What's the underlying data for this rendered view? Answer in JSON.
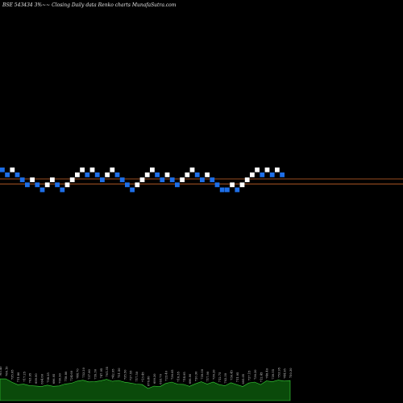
{
  "chart_data": {
    "type": "renko",
    "title": "BSE 543434  3%~~  Closing Daily data  Renko  charts MunafaSutra.com",
    "colors": {
      "up": "#ffffff",
      "down": "#1e6fe8",
      "line": "#c8642a",
      "volume": "#0a4a0a",
      "volume_edge": "#39d639"
    },
    "levels": [
      0,
      1
    ],
    "bricks": [
      {
        "dir": "down",
        "level": 1
      },
      {
        "dir": "down",
        "level": 0
      },
      {
        "dir": "up",
        "level": 1
      },
      {
        "dir": "down",
        "level": 0
      },
      {
        "dir": "down",
        "level": -1
      },
      {
        "dir": "down",
        "level": -2
      },
      {
        "dir": "up",
        "level": -1
      },
      {
        "dir": "down",
        "level": -2
      },
      {
        "dir": "down",
        "level": -3
      },
      {
        "dir": "up",
        "level": -2
      },
      {
        "dir": "up",
        "level": -1
      },
      {
        "dir": "down",
        "level": -2
      },
      {
        "dir": "down",
        "level": -3
      },
      {
        "dir": "up",
        "level": -2
      },
      {
        "dir": "up",
        "level": -1
      },
      {
        "dir": "up",
        "level": 0
      },
      {
        "dir": "up",
        "level": 1
      },
      {
        "dir": "down",
        "level": 0
      },
      {
        "dir": "up",
        "level": 1
      },
      {
        "dir": "down",
        "level": 0
      },
      {
        "dir": "down",
        "level": -1
      },
      {
        "dir": "up",
        "level": 0
      },
      {
        "dir": "up",
        "level": 1
      },
      {
        "dir": "down",
        "level": 0
      },
      {
        "dir": "down",
        "level": -1
      },
      {
        "dir": "down",
        "level": -2
      },
      {
        "dir": "down",
        "level": -3
      },
      {
        "dir": "up",
        "level": -2
      },
      {
        "dir": "up",
        "level": -1
      },
      {
        "dir": "up",
        "level": 0
      },
      {
        "dir": "up",
        "level": 1
      },
      {
        "dir": "down",
        "level": 0
      },
      {
        "dir": "down",
        "level": -1
      },
      {
        "dir": "up",
        "level": 0
      },
      {
        "dir": "down",
        "level": -1
      },
      {
        "dir": "down",
        "level": -2
      },
      {
        "dir": "up",
        "level": -1
      },
      {
        "dir": "up",
        "level": 0
      },
      {
        "dir": "up",
        "level": 1
      },
      {
        "dir": "down",
        "level": 0
      },
      {
        "dir": "down",
        "level": -1
      },
      {
        "dir": "up",
        "level": 0
      },
      {
        "dir": "down",
        "level": -1
      },
      {
        "dir": "down",
        "level": -2
      },
      {
        "dir": "down",
        "level": -3
      },
      {
        "dir": "down",
        "level": -3
      },
      {
        "dir": "up",
        "level": -2
      },
      {
        "dir": "down",
        "level": -3
      },
      {
        "dir": "up",
        "level": -2
      },
      {
        "dir": "up",
        "level": -1
      },
      {
        "dir": "up",
        "level": 0
      },
      {
        "dir": "up",
        "level": 1
      },
      {
        "dir": "down",
        "level": 0
      },
      {
        "dir": "up",
        "level": 1
      },
      {
        "dir": "down",
        "level": 0
      },
      {
        "dir": "up",
        "level": 1
      },
      {
        "dir": "down",
        "level": 0
      }
    ],
    "volume_labels": [
      "765.40",
      "766.10",
      "735.65",
      "711.80",
      "717.25",
      "703.95",
      "699.90",
      "694.60",
      "708.25",
      "696.95",
      "700.90",
      "718.80",
      "724.60",
      "744.70",
      "753.20",
      "737.80",
      "739.30",
      "747.95",
      "761.35",
      "742.95",
      "751.50",
      "735.50",
      "727.55",
      "717.50",
      "713.45",
      "676.80",
      "699.20",
      "693.70",
      "723.40",
      "736.05",
      "716.35",
      "714.95",
      "696.90",
      "720.30",
      "739.00",
      "717.90",
      "736.20",
      "712.75",
      "702.30",
      "730.45",
      "711.95",
      "695.05",
      "727.15",
      "736.20",
      "712.45",
      "746.40",
      "739.55",
      "753.95",
      "744.95",
      "750.30"
    ]
  }
}
